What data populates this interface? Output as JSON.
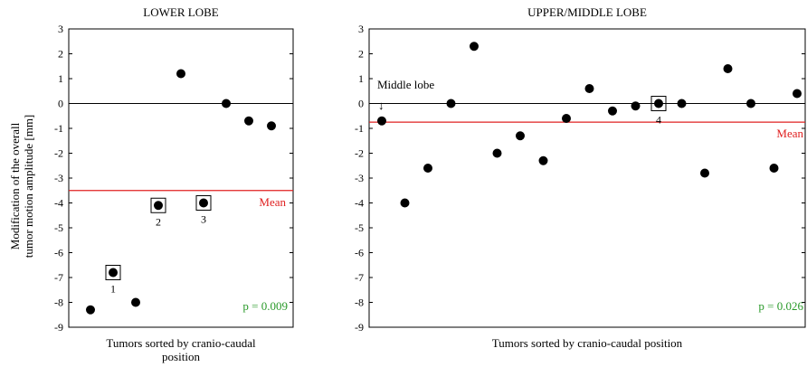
{
  "ylabel_lines": [
    "Modification of the overall",
    "tumor motion amplitude [mm]"
  ],
  "chart_data": [
    {
      "type": "scatter",
      "title": "LOWER LOBE",
      "xlabel_lines": [
        "Tumors sorted by cranio-caudal",
        "position"
      ],
      "ylim": [
        -9,
        3
      ],
      "yticks": [
        3,
        2,
        1,
        0,
        -1,
        -2,
        -3,
        -4,
        -5,
        -6,
        -7,
        -8,
        -9
      ],
      "x_count": 9,
      "y": [
        -8.3,
        -6.8,
        -8.0,
        -4.1,
        1.2,
        -4.0,
        0.0,
        -0.7,
        -0.9
      ],
      "boxed": [
        {
          "index": 1,
          "label": "1"
        },
        {
          "index": 3,
          "label": "2"
        },
        {
          "index": 5,
          "label": "3"
        }
      ],
      "mean": -3.5,
      "mean_label": "Mean",
      "pvalue": "p = 0.009",
      "zero_line": true,
      "grid": false,
      "colors": {
        "points": "#000000",
        "mean": "#e02020",
        "pvalue": "#2a9a2a"
      }
    },
    {
      "type": "scatter",
      "title": "UPPER/MIDDLE LOBE",
      "xlabel_lines": [
        "Tumors sorted by cranio-caudal position"
      ],
      "ylim": [
        -9,
        3
      ],
      "yticks": [
        3,
        2,
        1,
        0,
        -1,
        -2,
        -3,
        -4,
        -5,
        -6,
        -7,
        -8,
        -9
      ],
      "x_count": 19,
      "y": [
        -0.7,
        -4.0,
        -2.6,
        0.0,
        2.3,
        -2.0,
        -1.3,
        -2.3,
        -0.6,
        0.6,
        -0.3,
        -0.1,
        0.0,
        0.0,
        -2.8,
        1.4,
        0.0,
        -2.6,
        0.4
      ],
      "boxed": [
        {
          "index": 12,
          "label": "4"
        }
      ],
      "annotation": {
        "text": "Middle lobe",
        "arrow": "↓",
        "index": 0
      },
      "mean": -0.75,
      "mean_label": "Mean",
      "pvalue": "p = 0.026",
      "zero_line": true,
      "grid": false,
      "colors": {
        "points": "#000000",
        "mean": "#e02020",
        "pvalue": "#2a9a2a"
      }
    }
  ]
}
